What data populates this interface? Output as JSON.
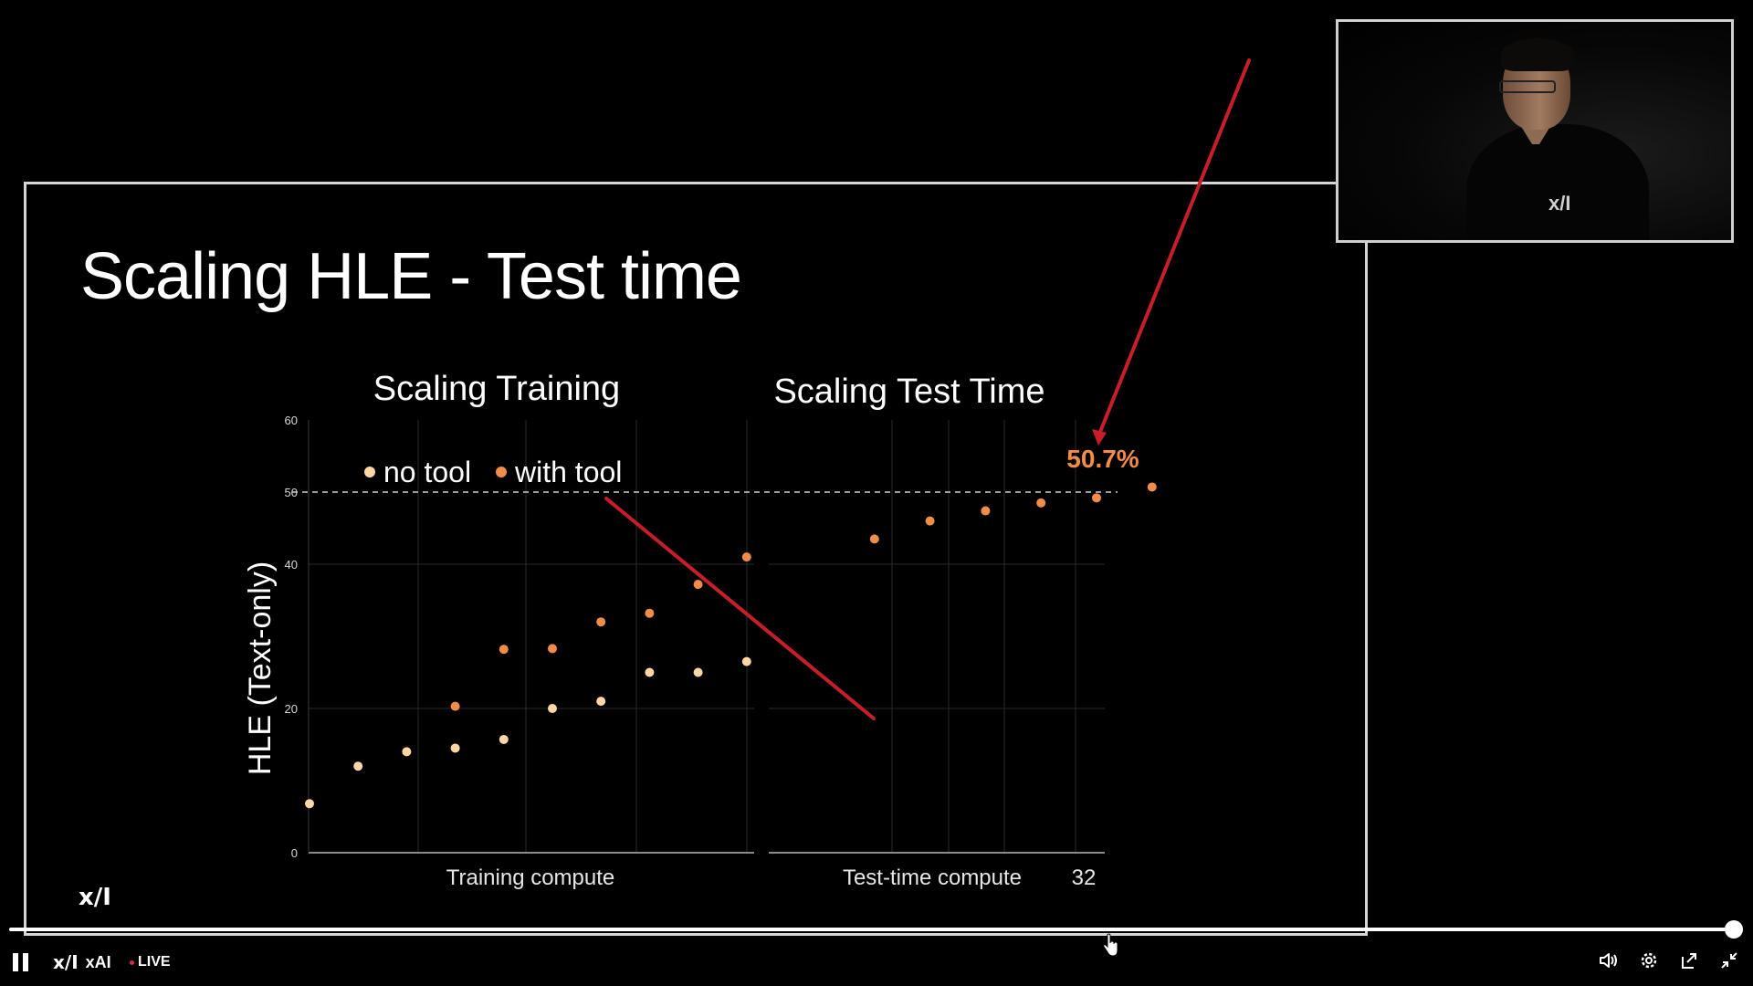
{
  "slide": {
    "title": "Scaling HLE - Test time",
    "logo": "x/I"
  },
  "chart_data": {
    "type": "scatter",
    "ylabel": "HLE (Text-only)",
    "ylim": [
      0,
      60
    ],
    "yticks": [
      "0",
      "20",
      "40",
      "50",
      "60"
    ],
    "legend": {
      "placement": "top-left",
      "entries": [
        "no tool",
        "with tool"
      ]
    },
    "series_colors": {
      "no tool": "#ffd6a5",
      "with tool": "#f28c48"
    },
    "reference_line": {
      "y": 50,
      "style": "dashed"
    },
    "panels": [
      {
        "title": "Scaling Training",
        "xlabel": "Training compute",
        "series": [
          {
            "name": "no tool",
            "points": [
              [
                0,
                6.8
              ],
              [
                1,
                12
              ],
              [
                2,
                14
              ],
              [
                3,
                14.5
              ],
              [
                4,
                15.7
              ],
              [
                5,
                20
              ],
              [
                6,
                21
              ],
              [
                7,
                25
              ],
              [
                8,
                25
              ],
              [
                9,
                26.5
              ]
            ]
          },
          {
            "name": "with tool",
            "points": [
              [
                3,
                20.3
              ],
              [
                4,
                28.2
              ],
              [
                5,
                28.3
              ],
              [
                6,
                32
              ],
              [
                7,
                33.2
              ],
              [
                8,
                37.2
              ],
              [
                9,
                41
              ]
            ]
          }
        ]
      },
      {
        "title": "Scaling Test Time",
        "xlabel": "Test-time compute",
        "x_end_label": "32",
        "series": [
          {
            "name": "with tool",
            "points": [
              [
                1,
                43.5
              ],
              [
                2,
                46
              ],
              [
                3,
                47.4
              ],
              [
                4,
                48.5
              ],
              [
                5,
                49.2
              ],
              [
                6,
                50.7
              ]
            ]
          }
        ],
        "highlight": {
          "label": "50.7%",
          "value": 50.7
        }
      }
    ]
  },
  "player": {
    "channel_name": "xAI",
    "channel_logo": "x/I",
    "live_label": "LIVE",
    "progress_fraction": 1.0
  },
  "icons": {
    "pause": "pause-icon",
    "volume": "volume-icon",
    "settings": "gear-icon",
    "popout": "popout-icon",
    "exit_fullscreen": "exit-fullscreen-icon"
  }
}
